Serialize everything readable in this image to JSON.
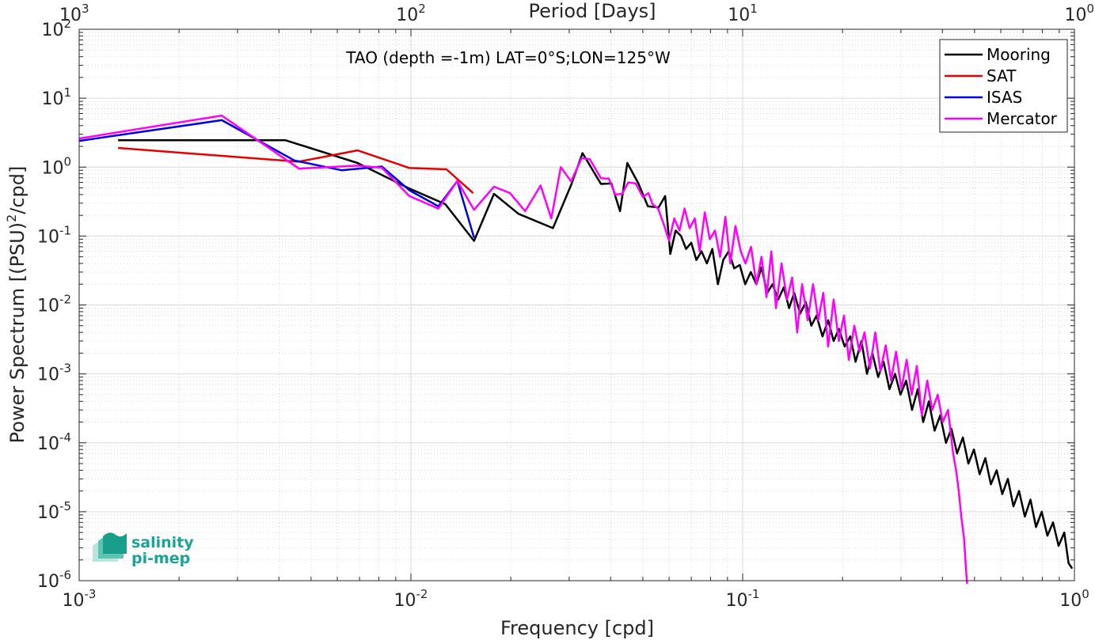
{
  "chart_data": {
    "type": "line",
    "title": "TAO (depth =-1m) LAT=0°S;LON=125°W",
    "xlabel": "Frequency [cpd]",
    "ylabel": "Power Spectrum [(PSU)",
    "ylabel_sup": "2",
    "ylabel_tail": "/cpd]",
    "x2label": "Period [Days]",
    "xscale": "log",
    "yscale": "log",
    "xlim": [
      0.001,
      1
    ],
    "ylim": [
      1e-06,
      100
    ],
    "grid": true,
    "legend_position": "top-right",
    "x_ticks": [
      {
        "value": 0.001,
        "base": "10",
        "exp": "-3"
      },
      {
        "value": 0.01,
        "base": "10",
        "exp": "-2"
      },
      {
        "value": 0.1,
        "base": "10",
        "exp": "-1"
      },
      {
        "value": 1,
        "base": "10",
        "exp": "0"
      }
    ],
    "y_ticks": [
      {
        "value": 1e-06,
        "base": "10",
        "exp": "-6"
      },
      {
        "value": 1e-05,
        "base": "10",
        "exp": "-5"
      },
      {
        "value": 0.0001,
        "base": "10",
        "exp": "-4"
      },
      {
        "value": 0.001,
        "base": "10",
        "exp": "-3"
      },
      {
        "value": 0.01,
        "base": "10",
        "exp": "-2"
      },
      {
        "value": 0.1,
        "base": "10",
        "exp": "-1"
      },
      {
        "value": 1,
        "base": "10",
        "exp": "0"
      },
      {
        "value": 10,
        "base": "10",
        "exp": "1"
      },
      {
        "value": 100,
        "base": "10",
        "exp": "2"
      }
    ],
    "x2_ticks": [
      {
        "value": 0.001,
        "base": "10",
        "exp": "3"
      },
      {
        "value": 0.01,
        "base": "10",
        "exp": "2"
      },
      {
        "value": 0.1,
        "base": "10",
        "exp": "1"
      },
      {
        "value": 1,
        "base": "10",
        "exp": "0"
      }
    ],
    "series": [
      {
        "name": "Mooring",
        "color": "#000000",
        "points": [
          [
            0.00131,
            2.45
          ],
          [
            0.00419,
            2.45
          ],
          [
            0.0069,
            1.15
          ],
          [
            0.0098,
            0.5
          ],
          [
            0.0127,
            0.29
          ],
          [
            0.0155,
            0.085
          ],
          [
            0.0178,
            0.41
          ],
          [
            0.0211,
            0.21
          ],
          [
            0.0268,
            0.13
          ],
          [
            0.0304,
            0.55
          ],
          [
            0.0329,
            1.6
          ],
          [
            0.0374,
            0.57
          ],
          [
            0.0402,
            0.58
          ],
          [
            0.0427,
            0.23
          ],
          [
            0.0449,
            1.15
          ],
          [
            0.0485,
            0.58
          ],
          [
            0.0518,
            0.27
          ],
          [
            0.0558,
            0.26
          ],
          [
            0.0584,
            0.38
          ],
          [
            0.0605,
            0.055
          ],
          [
            0.0628,
            0.12
          ],
          [
            0.0652,
            0.1
          ],
          [
            0.0675,
            0.065
          ],
          [
            0.07,
            0.08
          ],
          [
            0.0725,
            0.045
          ],
          [
            0.0752,
            0.06
          ],
          [
            0.078,
            0.04
          ],
          [
            0.081,
            0.065
          ],
          [
            0.0842,
            0.02
          ],
          [
            0.0874,
            0.045
          ],
          [
            0.0908,
            0.06
          ],
          [
            0.0943,
            0.034
          ],
          [
            0.098,
            0.038
          ],
          [
            0.1018,
            0.02
          ],
          [
            0.1058,
            0.03
          ],
          [
            0.11,
            0.02
          ],
          [
            0.114,
            0.035
          ],
          [
            0.1186,
            0.015
          ],
          [
            0.123,
            0.02
          ],
          [
            0.128,
            0.012
          ],
          [
            0.133,
            0.018
          ],
          [
            0.138,
            0.009
          ],
          [
            0.143,
            0.015
          ],
          [
            0.149,
            0.0075
          ],
          [
            0.155,
            0.011
          ],
          [
            0.161,
            0.005
          ],
          [
            0.167,
            0.007
          ],
          [
            0.174,
            0.0035
          ],
          [
            0.181,
            0.006
          ],
          [
            0.188,
            0.003
          ],
          [
            0.195,
            0.0045
          ],
          [
            0.203,
            0.0025
          ],
          [
            0.211,
            0.0035
          ],
          [
            0.219,
            0.0015
          ],
          [
            0.228,
            0.003
          ],
          [
            0.237,
            0.001
          ],
          [
            0.246,
            0.002
          ],
          [
            0.256,
            0.0009
          ],
          [
            0.266,
            0.0015
          ],
          [
            0.277,
            0.0006
          ],
          [
            0.288,
            0.001
          ],
          [
            0.299,
            0.0005
          ],
          [
            0.311,
            0.0008
          ],
          [
            0.324,
            0.0003
          ],
          [
            0.337,
            0.0006
          ],
          [
            0.35,
            0.0002
          ],
          [
            0.364,
            0.0004
          ],
          [
            0.379,
            0.00015
          ],
          [
            0.394,
            0.00025
          ],
          [
            0.41,
            0.0001
          ],
          [
            0.426,
            0.00016
          ],
          [
            0.443,
            7e-05
          ],
          [
            0.461,
            0.00012
          ],
          [
            0.479,
            5e-05
          ],
          [
            0.498,
            8e-05
          ],
          [
            0.518,
            3.5e-05
          ],
          [
            0.539,
            6e-05
          ],
          [
            0.56,
            2.5e-05
          ],
          [
            0.583,
            4e-05
          ],
          [
            0.606,
            1.8e-05
          ],
          [
            0.63,
            3e-05
          ],
          [
            0.655,
            1.2e-05
          ],
          [
            0.681,
            2e-05
          ],
          [
            0.709,
            8.5e-06
          ],
          [
            0.737,
            1.5e-05
          ],
          [
            0.766,
            6e-06
          ],
          [
            0.797,
            1e-05
          ],
          [
            0.829,
            4.5e-06
          ],
          [
            0.862,
            7e-06
          ],
          [
            0.896,
            3.2e-06
          ],
          [
            0.932,
            5e-06
          ],
          [
            0.96,
            1.8e-06
          ],
          [
            0.985,
            1.5e-06
          ]
        ]
      },
      {
        "name": "SAT",
        "color": "#e60000",
        "points": [
          [
            0.00131,
            1.9
          ],
          [
            0.00458,
            1.2
          ],
          [
            0.0069,
            1.75
          ],
          [
            0.0099,
            0.97
          ],
          [
            0.0128,
            0.93
          ],
          [
            0.0154,
            0.42
          ]
        ]
      },
      {
        "name": "ISAS",
        "color": "#0000e6",
        "points": [
          [
            0.001,
            2.4
          ],
          [
            0.00269,
            4.8
          ],
          [
            0.00445,
            1.25
          ],
          [
            0.00618,
            0.9
          ],
          [
            0.00817,
            1.02
          ],
          [
            0.0099,
            0.46
          ],
          [
            0.0121,
            0.27
          ],
          [
            0.0138,
            0.63
          ],
          [
            0.0155,
            0.095
          ]
        ]
      },
      {
        "name": "Mercator",
        "color": "#ff00ff",
        "points": [
          [
            0.001,
            2.6
          ],
          [
            0.00269,
            5.6
          ],
          [
            0.0046,
            0.95
          ],
          [
            0.00688,
            1.05
          ],
          [
            0.00817,
            0.98
          ],
          [
            0.0099,
            0.38
          ],
          [
            0.0121,
            0.25
          ],
          [
            0.0138,
            0.63
          ],
          [
            0.0155,
            0.24
          ],
          [
            0.0178,
            0.52
          ],
          [
            0.0199,
            0.42
          ],
          [
            0.0221,
            0.23
          ],
          [
            0.0246,
            0.54
          ],
          [
            0.0265,
            0.18
          ],
          [
            0.0283,
            1.0
          ],
          [
            0.0304,
            0.62
          ],
          [
            0.0327,
            1.35
          ],
          [
            0.0346,
            1.3
          ],
          [
            0.0374,
            0.69
          ],
          [
            0.0395,
            0.68
          ],
          [
            0.0413,
            0.4
          ],
          [
            0.0433,
            0.41
          ],
          [
            0.0452,
            0.6
          ],
          [
            0.0476,
            0.58
          ],
          [
            0.05,
            0.37
          ],
          [
            0.052,
            0.42
          ],
          [
            0.0535,
            0.29
          ],
          [
            0.0556,
            0.25
          ],
          [
            0.0578,
            0.15
          ],
          [
            0.06,
            0.085
          ],
          [
            0.0622,
            0.18
          ],
          [
            0.0645,
            0.12
          ],
          [
            0.0668,
            0.25
          ],
          [
            0.0692,
            0.13
          ],
          [
            0.0717,
            0.18
          ],
          [
            0.0742,
            0.06
          ],
          [
            0.0769,
            0.22
          ],
          [
            0.0796,
            0.09
          ],
          [
            0.0825,
            0.12
          ],
          [
            0.0855,
            0.05
          ],
          [
            0.0887,
            0.19
          ],
          [
            0.0918,
            0.04
          ],
          [
            0.0951,
            0.14
          ],
          [
            0.0987,
            0.06
          ],
          [
            0.102,
            0.04
          ],
          [
            0.106,
            0.07
          ],
          [
            0.11,
            0.02
          ],
          [
            0.114,
            0.05
          ],
          [
            0.118,
            0.013
          ],
          [
            0.122,
            0.06
          ],
          [
            0.126,
            0.009
          ],
          [
            0.131,
            0.04
          ],
          [
            0.136,
            0.012
          ],
          [
            0.141,
            0.025
          ],
          [
            0.146,
            0.004
          ],
          [
            0.151,
            0.02
          ],
          [
            0.157,
            0.006
          ],
          [
            0.163,
            0.02
          ],
          [
            0.169,
            0.006
          ],
          [
            0.175,
            0.015
          ],
          [
            0.181,
            0.0025
          ],
          [
            0.188,
            0.012
          ],
          [
            0.195,
            0.003
          ],
          [
            0.202,
            0.007
          ],
          [
            0.209,
            0.0016
          ],
          [
            0.217,
            0.005
          ],
          [
            0.225,
            0.0021
          ],
          [
            0.233,
            0.004
          ],
          [
            0.242,
            0.0012
          ],
          [
            0.251,
            0.004
          ],
          [
            0.26,
            0.0011
          ],
          [
            0.27,
            0.0026
          ],
          [
            0.28,
            0.0008
          ],
          [
            0.29,
            0.0021
          ],
          [
            0.301,
            0.0006
          ],
          [
            0.312,
            0.0016
          ],
          [
            0.323,
            0.0005
          ],
          [
            0.335,
            0.0013
          ],
          [
            0.347,
            0.00025
          ],
          [
            0.36,
            0.0008
          ],
          [
            0.373,
            0.0003
          ],
          [
            0.387,
            0.0005
          ],
          [
            0.401,
            0.0002
          ],
          [
            0.416,
            0.0003
          ],
          [
            0.431,
            7e-05
          ],
          [
            0.44,
            4e-05
          ],
          [
            0.448,
            2e-05
          ],
          [
            0.456,
            8.5e-06
          ],
          [
            0.465,
            4e-06
          ],
          [
            0.471,
            1.5e-06
          ],
          [
            0.475,
            9e-07
          ]
        ]
      }
    ]
  },
  "logo": {
    "line1": "salinity",
    "line2": "pi-mep"
  }
}
